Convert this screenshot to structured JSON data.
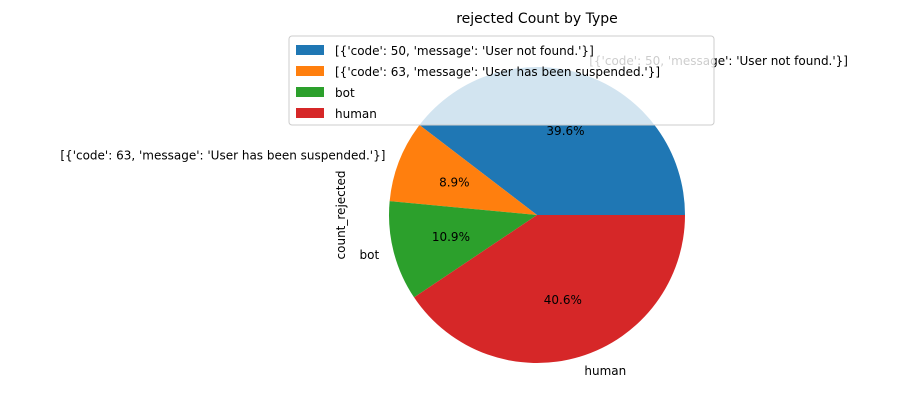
{
  "chart_data": {
    "type": "pie",
    "title": "rejected Count by Type",
    "ylabel": "count_rejected",
    "categories": [
      "[{'code': 50, 'message': 'User not found.'}]",
      "[{'code': 63, 'message': 'User has been suspended.'}]",
      "bot",
      "human"
    ],
    "values": [
      39.6,
      8.9,
      10.9,
      40.6
    ],
    "percent_labels": [
      "39.6%",
      "8.9%",
      "10.9%",
      "40.6%"
    ],
    "colors": [
      "#1f77b4",
      "#ff7f0e",
      "#2ca02c",
      "#d62728"
    ],
    "legend_placement": "upper-right"
  }
}
